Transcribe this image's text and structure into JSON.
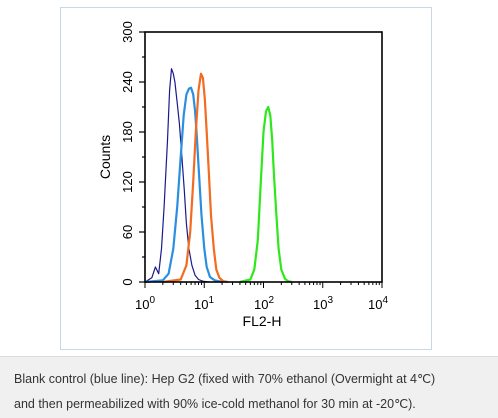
{
  "chart_data": {
    "type": "line",
    "xscale": "log",
    "xlim": [
      1,
      10000
    ],
    "ylim": [
      0,
      300
    ],
    "xlabel": "FL2-H",
    "ylabel": "Counts",
    "yticks": [
      "0",
      "60",
      "120",
      "180",
      "240",
      "300"
    ],
    "xticks": [
      {
        "base": "10",
        "exp": "0"
      },
      {
        "base": "10",
        "exp": "1"
      },
      {
        "base": "10",
        "exp": "2"
      },
      {
        "base": "10",
        "exp": "3"
      },
      {
        "base": "10",
        "exp": "4"
      }
    ],
    "grid": false,
    "series": [
      {
        "color": "#1a1a8c",
        "x": [
          1,
          1.3,
          1.5,
          1.7,
          1.9,
          2.1,
          2.4,
          2.6,
          2.8,
          3.0,
          3.2,
          3.5,
          3.8,
          4.2,
          4.6,
          5.0,
          5.5,
          6.2,
          7.0,
          8.0,
          9.5,
          12
        ],
        "y": [
          0,
          5,
          18,
          10,
          40,
          90,
          170,
          230,
          256,
          250,
          240,
          215,
          190,
          150,
          110,
          70,
          40,
          20,
          8,
          3,
          1,
          0
        ]
      },
      {
        "color": "#2a8fe0",
        "x": [
          1,
          2.0,
          2.5,
          3.0,
          3.5,
          4.0,
          4.5,
          5.0,
          5.5,
          6.0,
          6.5,
          7.0,
          7.5,
          8.0,
          9.0,
          10,
          11,
          12.5,
          15,
          20
        ],
        "y": [
          0,
          2,
          10,
          40,
          90,
          150,
          200,
          225,
          232,
          233,
          225,
          205,
          175,
          140,
          80,
          40,
          18,
          6,
          2,
          0
        ]
      },
      {
        "color": "#f26b21",
        "x": [
          2,
          4.0,
          5.0,
          5.8,
          6.5,
          7.2,
          8.0,
          8.8,
          9.5,
          10.2,
          11,
          12,
          13,
          14.5,
          16,
          18,
          21,
          25
        ],
        "y": [
          0,
          3,
          20,
          60,
          120,
          180,
          230,
          250,
          245,
          220,
          180,
          130,
          80,
          40,
          15,
          5,
          1,
          0
        ]
      },
      {
        "color": "#2ee81c",
        "x": [
          40,
          60,
          70,
          80,
          90,
          100,
          110,
          120,
          130,
          140,
          150,
          165,
          180,
          200,
          230,
          260,
          300
        ],
        "y": [
          0,
          3,
          15,
          50,
          120,
          180,
          205,
          210,
          200,
          170,
          130,
          80,
          40,
          15,
          4,
          1,
          0
        ]
      }
    ]
  },
  "caption": {
    "line1": "Blank control (blue line): Hep G2 (fixed with 70% ethanol (Overmight at 4℃)",
    "line2": "and then permeabilized with 90% ice-cold methanol for 30 min at -20℃)."
  }
}
